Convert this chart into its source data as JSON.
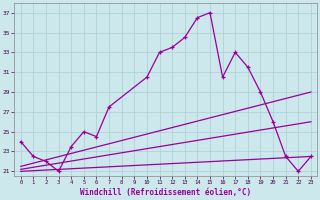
{
  "xlabel": "Windchill (Refroidissement éolien,°C)",
  "background_color": "#cce8ec",
  "grid_color": "#aacfd5",
  "line_color": "#990099",
  "xlim": [
    -0.5,
    23.5
  ],
  "ylim": [
    20.5,
    38.0
  ],
  "xticks": [
    0,
    1,
    2,
    3,
    4,
    5,
    6,
    7,
    8,
    9,
    10,
    11,
    12,
    13,
    14,
    15,
    16,
    17,
    18,
    19,
    20,
    21,
    22,
    23
  ],
  "yticks": [
    21,
    23,
    25,
    27,
    29,
    31,
    33,
    35,
    37
  ],
  "jagged": {
    "x": [
      0,
      1,
      2,
      3,
      4,
      5,
      6,
      7,
      10,
      11,
      12,
      13,
      14,
      15,
      16,
      17,
      18,
      19,
      20,
      21,
      22,
      23
    ],
    "y": [
      24.0,
      22.5,
      22.0,
      21.0,
      23.5,
      25.0,
      24.5,
      27.5,
      30.5,
      33.0,
      33.5,
      34.5,
      36.5,
      37.0,
      30.5,
      33.0,
      31.5,
      29.0,
      26.0,
      22.5,
      21.0,
      22.5
    ]
  },
  "line1": {
    "x": [
      0,
      23
    ],
    "y": [
      21.5,
      29.0
    ]
  },
  "line2": {
    "x": [
      0,
      23
    ],
    "y": [
      21.2,
      26.0
    ]
  },
  "line3": {
    "x": [
      0,
      23
    ],
    "y": [
      21.0,
      22.5
    ]
  }
}
